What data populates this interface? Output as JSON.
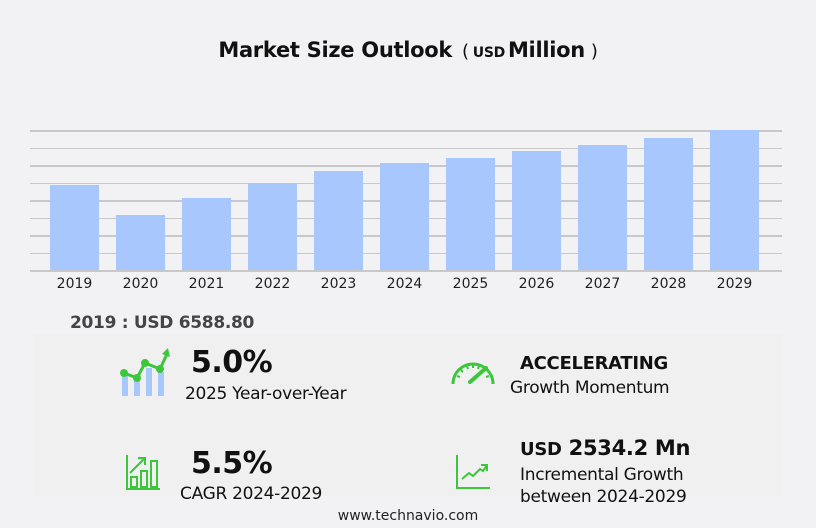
{
  "title": {
    "main": "Market Size Outlook",
    "open_paren": "(",
    "unit_small": "USD",
    "unit": "Million",
    "close_paren": ")"
  },
  "chart_data": {
    "type": "bar",
    "title": "Market Size Outlook (USD Million)",
    "xlabel": "",
    "ylabel": "",
    "categories": [
      "2019",
      "2020",
      "2021",
      "2022",
      "2023",
      "2024",
      "2025",
      "2026",
      "2027",
      "2028",
      "2029"
    ],
    "values": [
      6588.8,
      4263,
      5581,
      6744,
      7674,
      8294,
      8709,
      9190,
      9690,
      10220,
      10828
    ],
    "ylim": [
      0,
      10850
    ],
    "grid": true,
    "legend": "none",
    "bar_color": "#a8c8fd"
  },
  "base_value": {
    "label": "2019 : USD  6588.80"
  },
  "stats": {
    "yoy": {
      "value": "5.0%",
      "label": "2025 Year-over-Year",
      "icon": "growth-chart-icon"
    },
    "momentum": {
      "value": "ACCELERATING",
      "label": "Growth Momentum",
      "icon": "speedometer-icon"
    },
    "cagr": {
      "value": "5.5%",
      "label": "CAGR 2024-2029",
      "icon": "bar-chart-arrow-icon"
    },
    "incremental": {
      "currency": "USD",
      "value": "2534.2 Mn",
      "label_line1": "Incremental Growth",
      "label_line2": "between 2024-2029",
      "icon": "trend-line-icon"
    }
  },
  "colors": {
    "accent_green": "#3cc63c",
    "bar_blue": "#a8c8fd",
    "background": "#f2f2f4"
  },
  "footer": {
    "url": "www.technavio.com"
  }
}
